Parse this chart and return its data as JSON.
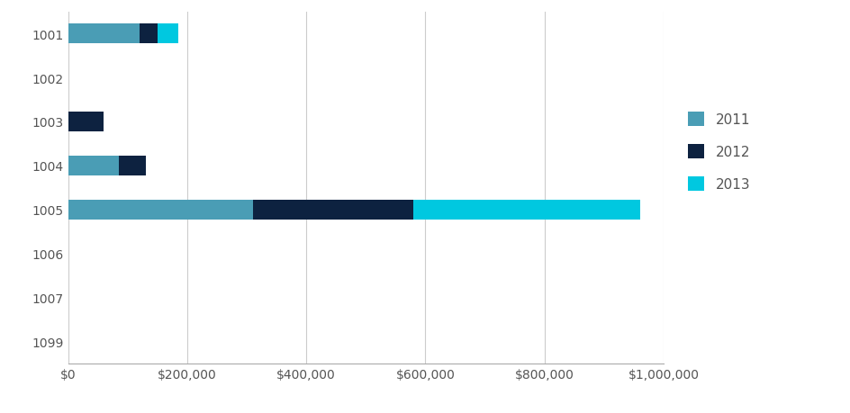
{
  "categories": [
    "1001",
    "1002",
    "1003",
    "1004",
    "1005",
    "1006",
    "1007",
    "1099"
  ],
  "series": {
    "2011": [
      120000,
      0,
      0,
      85000,
      310000,
      0,
      0,
      0
    ],
    "2012": [
      30000,
      0,
      60000,
      45000,
      270000,
      0,
      0,
      0
    ],
    "2013": [
      35000,
      0,
      0,
      0,
      380000,
      0,
      0,
      0
    ]
  },
  "colors": {
    "2011": "#4a9db5",
    "2012": "#0d2240",
    "2013": "#00c8e0"
  },
  "xlim": [
    0,
    1000000
  ],
  "xticks": [
    0,
    200000,
    400000,
    600000,
    800000,
    1000000
  ],
  "xticklabels": [
    "$0",
    "$200,000",
    "$400,000",
    "$600,000",
    "$800,000",
    "$1,000,000"
  ],
  "legend_order": [
    "2011",
    "2012",
    "2013"
  ],
  "background_color": "#ffffff",
  "grid_color": "#cccccc",
  "bar_height": 0.45,
  "figsize": [
    9.45,
    4.6
  ],
  "dpi": 100,
  "tick_labelsize": 10,
  "label_color": "#555555",
  "spine_color": "#aaaaaa"
}
